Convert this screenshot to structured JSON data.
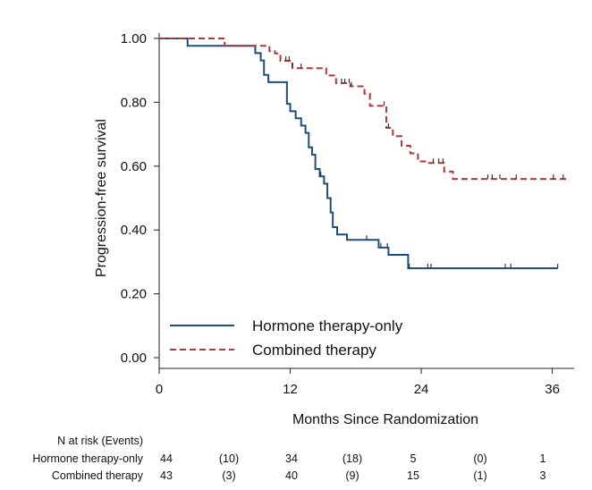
{
  "chart_data": {
    "type": "line",
    "title": "",
    "xlabel": "Months Since Randomization",
    "ylabel": "Progression-free survival",
    "xlim": [
      0,
      38
    ],
    "ylim": [
      0,
      1
    ],
    "x_ticks": [
      0,
      12,
      24,
      36
    ],
    "x_tick_labels": [
      "0",
      "12",
      "24",
      "36"
    ],
    "y_ticks": [
      0,
      0.2,
      0.4,
      0.6,
      0.8,
      1.0
    ],
    "y_tick_labels": [
      "0.00",
      "0.20",
      "0.40",
      "0.60",
      "0.80",
      "1.00"
    ],
    "grid": false,
    "legend_position": "bottom-left",
    "series": [
      {
        "name": "Hormone therapy-only",
        "color": "#1f4e79",
        "dash": "solid",
        "steps": [
          [
            0,
            1.0
          ],
          [
            2.6,
            0.977
          ],
          [
            8.8,
            0.954
          ],
          [
            9.3,
            0.931
          ],
          [
            9.6,
            0.886
          ],
          [
            10.0,
            0.863
          ],
          [
            11.7,
            0.795
          ],
          [
            12.0,
            0.772
          ],
          [
            12.5,
            0.75
          ],
          [
            13.0,
            0.727
          ],
          [
            13.4,
            0.704
          ],
          [
            13.7,
            0.659
          ],
          [
            14.0,
            0.636
          ],
          [
            14.3,
            0.591
          ],
          [
            14.7,
            0.568
          ],
          [
            15.1,
            0.545
          ],
          [
            15.4,
            0.5
          ],
          [
            15.7,
            0.455
          ],
          [
            15.9,
            0.409
          ],
          [
            16.3,
            0.386
          ],
          [
            17.2,
            0.369
          ],
          [
            20.1,
            0.345
          ],
          [
            21.0,
            0.322
          ],
          [
            22.8,
            0.28
          ],
          [
            36.5,
            0.28
          ]
        ],
        "censor_times": [
          14.8,
          19.0,
          20.3,
          20.9,
          22.9,
          24.6,
          24.9,
          31.7,
          32.2,
          36.5
        ]
      },
      {
        "name": "Combined therapy",
        "color": "#b03a3a",
        "dash": "dashed",
        "steps": [
          [
            0,
            1.0
          ],
          [
            6.0,
            0.977
          ],
          [
            10.1,
            0.96
          ],
          [
            10.6,
            0.953
          ],
          [
            11.1,
            0.93
          ],
          [
            12.2,
            0.907
          ],
          [
            15.3,
            0.884
          ],
          [
            16.2,
            0.86
          ],
          [
            17.5,
            0.85
          ],
          [
            18.8,
            0.827
          ],
          [
            19.3,
            0.789
          ],
          [
            20.8,
            0.72
          ],
          [
            21.4,
            0.694
          ],
          [
            22.2,
            0.664
          ],
          [
            23.0,
            0.64
          ],
          [
            23.7,
            0.615
          ],
          [
            24.7,
            0.61
          ],
          [
            26.1,
            0.583
          ],
          [
            26.9,
            0.56
          ],
          [
            37.6,
            0.56
          ]
        ],
        "censor_times": [
          11.6,
          11.9,
          12.2,
          13.0,
          16.7,
          17.0,
          17.4,
          17.6,
          20.6,
          21.0,
          25.1,
          25.6,
          26.0,
          30.1,
          30.5,
          31.2,
          32.7,
          36.1,
          37.0
        ]
      }
    ]
  },
  "risk_table": {
    "header": "N at risk (Events)",
    "rows": [
      {
        "label": "Hormone therapy-only",
        "values": [
          "44",
          "(10)",
          "34",
          "(18)",
          "5",
          "(0)",
          "1"
        ]
      },
      {
        "label": "Combined therapy",
        "values": [
          "43",
          "(3)",
          "40",
          "(9)",
          "15",
          "(1)",
          "3"
        ]
      }
    ]
  }
}
